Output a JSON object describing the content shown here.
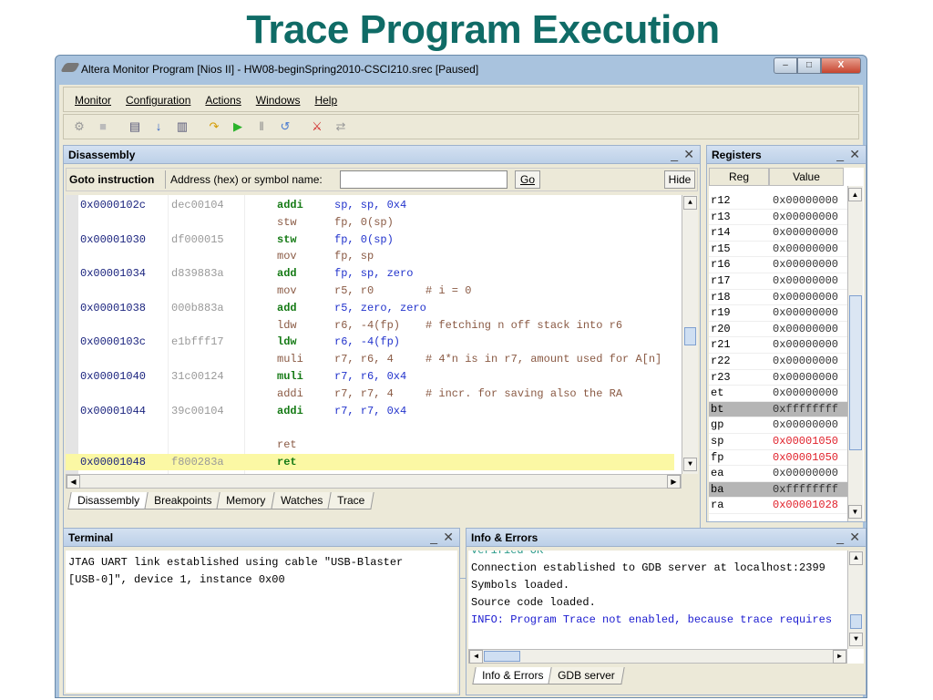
{
  "slide_title": "Trace Program Execution",
  "window": {
    "title": "Altera Monitor Program [Nios II] - HW08-beginSpring2010-CSCI210.srec [Paused]",
    "controls": {
      "minimize": "–",
      "maximize": "□",
      "close": "X"
    }
  },
  "menu": [
    {
      "label": "Monitor"
    },
    {
      "label": "Configuration"
    },
    {
      "label": "Actions"
    },
    {
      "label": "Windows"
    },
    {
      "label": "Help"
    }
  ],
  "toolbar": [
    {
      "icon": "connect-icon",
      "glyph": "⚙",
      "color": "#999"
    },
    {
      "icon": "document-icon",
      "glyph": "■",
      "color": "#bbb"
    },
    {
      "icon": "compile-icon",
      "glyph": "▤",
      "color": "#557"
    },
    {
      "icon": "download-icon",
      "glyph": "↓",
      "color": "#2c5fc7"
    },
    {
      "icon": "compile-load-icon",
      "glyph": "▥",
      "color": "#557"
    },
    {
      "icon": "step-over-icon",
      "glyph": "↷",
      "color": "#d49b00"
    },
    {
      "icon": "continue-icon",
      "glyph": "▶",
      "color": "#2bb32b"
    },
    {
      "icon": "pause-icon",
      "glyph": "‖",
      "color": "#888"
    },
    {
      "icon": "restart-icon",
      "glyph": "↺",
      "color": "#4a7bd0"
    },
    {
      "icon": "disconnect-icon",
      "glyph": "⚔",
      "color": "#d02020"
    },
    {
      "icon": "refresh-icon",
      "glyph": "⇄",
      "color": "#999"
    }
  ],
  "disassembly": {
    "title": "Disassembly",
    "goto_label": "Goto instruction",
    "address_label": "Address (hex) or symbol name:",
    "address_value": "",
    "go_label": "Go",
    "hide_label": "Hide",
    "rows": [
      {
        "type": "mach",
        "addr": "0x0000102c",
        "hex": "dec00104",
        "mn": "addi",
        "op": "sp, sp, 0x4",
        "cm": ""
      },
      {
        "type": "src",
        "addr": "",
        "hex": "",
        "mn": "stw",
        "op": "fp, 0(sp)",
        "cm": ""
      },
      {
        "type": "mach",
        "addr": "0x00001030",
        "hex": "df000015",
        "mn": "stw",
        "op": "fp, 0(sp)",
        "cm": ""
      },
      {
        "type": "src",
        "addr": "",
        "hex": "",
        "mn": "mov",
        "op": "fp, sp",
        "cm": ""
      },
      {
        "type": "mach",
        "addr": "0x00001034",
        "hex": "d839883a",
        "mn": "add",
        "op": "fp, sp, zero",
        "cm": ""
      },
      {
        "type": "src",
        "addr": "",
        "hex": "",
        "mn": "mov",
        "op": "r5, r0",
        "cm": "# i = 0"
      },
      {
        "type": "mach",
        "addr": "0x00001038",
        "hex": "000b883a",
        "mn": "add",
        "op": "r5, zero, zero",
        "cm": ""
      },
      {
        "type": "src",
        "addr": "",
        "hex": "",
        "mn": "ldw",
        "op": "r6, -4(fp)",
        "cm": "# fetching n off stack into r6"
      },
      {
        "type": "mach",
        "addr": "0x0000103c",
        "hex": "e1bfff17",
        "mn": "ldw",
        "op": "r6, -4(fp)",
        "cm": ""
      },
      {
        "type": "src",
        "addr": "",
        "hex": "",
        "mn": "muli",
        "op": "r7, r6, 4",
        "cm": "# 4*n is in r7, amount used for A[n]"
      },
      {
        "type": "mach",
        "addr": "0x00001040",
        "hex": "31c00124",
        "mn": "muli",
        "op": "r7, r6, 0x4",
        "cm": ""
      },
      {
        "type": "src",
        "addr": "",
        "hex": "",
        "mn": "addi",
        "op": "r7, r7, 4",
        "cm": "# incr. for saving also the RA"
      },
      {
        "type": "mach",
        "addr": "0x00001044",
        "hex": "39c00104",
        "mn": "addi",
        "op": "r7, r7, 0x4",
        "cm": ""
      },
      {
        "type": "src",
        "addr": "",
        "hex": "",
        "mn": "",
        "op": "",
        "cm": ""
      },
      {
        "type": "src",
        "addr": "",
        "hex": "",
        "mn": "ret",
        "op": "",
        "cm": ""
      },
      {
        "type": "mach hl",
        "addr": "0x00001048",
        "hex": "f800283a",
        "mn": "ret",
        "op": "",
        "cm": ""
      }
    ],
    "tabs": [
      {
        "label": "Disassembly",
        "active": true
      },
      {
        "label": "Breakpoints"
      },
      {
        "label": "Memory"
      },
      {
        "label": "Watches"
      },
      {
        "label": "Trace"
      }
    ]
  },
  "registers": {
    "title": "Registers",
    "col_reg": "Reg",
    "col_value": "Value",
    "rows": [
      {
        "reg": "r12",
        "value": "0x00000000"
      },
      {
        "reg": "r13",
        "value": "0x00000000"
      },
      {
        "reg": "r14",
        "value": "0x00000000"
      },
      {
        "reg": "r15",
        "value": "0x00000000"
      },
      {
        "reg": "r16",
        "value": "0x00000000"
      },
      {
        "reg": "r17",
        "value": "0x00000000"
      },
      {
        "reg": "r18",
        "value": "0x00000000"
      },
      {
        "reg": "r19",
        "value": "0x00000000"
      },
      {
        "reg": "r20",
        "value": "0x00000000"
      },
      {
        "reg": "r21",
        "value": "0x00000000"
      },
      {
        "reg": "r22",
        "value": "0x00000000"
      },
      {
        "reg": "r23",
        "value": "0x00000000"
      },
      {
        "reg": "et",
        "value": "0x00000000"
      },
      {
        "reg": "bt",
        "value": "0xffffffff",
        "state": "hl"
      },
      {
        "reg": "gp",
        "value": "0x00000000"
      },
      {
        "reg": "sp",
        "value": "0x00001050",
        "state": "chg"
      },
      {
        "reg": "fp",
        "value": "0x00001050",
        "state": "chg"
      },
      {
        "reg": "ea",
        "value": "0x00000000"
      },
      {
        "reg": "ba",
        "value": "0xffffffff",
        "state": "hl"
      },
      {
        "reg": "ra",
        "value": "0x00001028",
        "state": "chg"
      }
    ],
    "changed_color": "#e0202a"
  },
  "terminal": {
    "title": "Terminal",
    "lines": [
      "JTAG UART link established using cable \"USB-Blaster",
      "[USB-0]\", device 1, instance 0x00"
    ]
  },
  "info": {
    "title": "Info & Errors",
    "lines": [
      {
        "text": "Verified OK",
        "color": "#2a9a8a"
      },
      {
        "text": "Connection established to GDB server at localhost:2399",
        "color": "#000"
      },
      {
        "text": "Symbols loaded.",
        "color": "#000"
      },
      {
        "text": "Source code loaded.",
        "color": "#000"
      },
      {
        "text": "INFO: Program Trace not enabled, because trace requires",
        "color": "#1a1ad0"
      }
    ],
    "tabs": [
      {
        "label": "Info & Errors",
        "active": true
      },
      {
        "label": "GDB server"
      }
    ]
  }
}
